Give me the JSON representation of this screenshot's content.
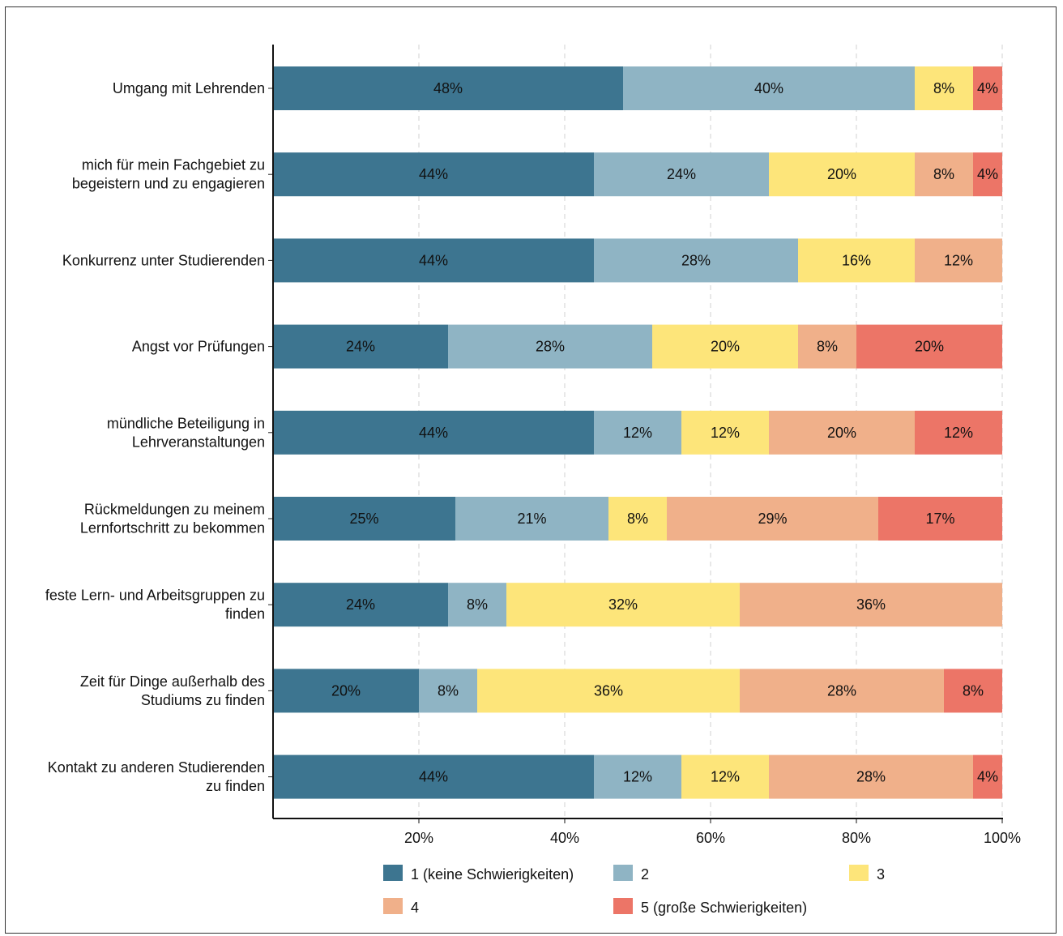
{
  "chart_data": {
    "type": "bar",
    "orientation": "horizontal",
    "stacked": true,
    "categories": [
      [
        "Umgang mit Lehrenden"
      ],
      [
        "mich für mein Fachgebiet zu",
        "begeistern und zu engagieren"
      ],
      [
        "Konkurrenz unter Studierenden"
      ],
      [
        "Angst vor Prüfungen"
      ],
      [
        "mündliche Beteiligung in",
        "Lehrveranstaltungen"
      ],
      [
        "Rückmeldungen zu meinem",
        "Lernfortschritt zu bekommen"
      ],
      [
        "feste Lern- und Arbeitsgruppen zu",
        "finden"
      ],
      [
        "Zeit für Dinge außerhalb des",
        "Studiums zu finden"
      ],
      [
        "Kontakt zu anderen Studierenden",
        "zu finden"
      ]
    ],
    "series": [
      {
        "name": "1 (keine Schwierigkeiten)",
        "color": "#3d7590",
        "values": [
          48,
          44,
          44,
          24,
          44,
          25,
          24,
          20,
          44
        ]
      },
      {
        "name": "2",
        "color": "#8fb4c4",
        "values": [
          40,
          24,
          28,
          28,
          12,
          21,
          8,
          8,
          12
        ]
      },
      {
        "name": "3",
        "color": "#fde57a",
        "values": [
          8,
          20,
          16,
          20,
          12,
          8,
          32,
          36,
          12
        ]
      },
      {
        "name": "4",
        "color": "#f0b08a",
        "values": [
          0,
          8,
          12,
          8,
          20,
          29,
          36,
          28,
          28
        ]
      },
      {
        "name": "5 (große Schwierigkeiten)",
        "color": "#ec7567",
        "values": [
          4,
          4,
          0,
          20,
          12,
          17,
          0,
          8,
          4
        ]
      }
    ],
    "data_labels": [
      [
        "48%",
        "40%",
        "8%",
        "",
        "4%"
      ],
      [
        "44%",
        "24%",
        "20%",
        "8%",
        "4%"
      ],
      [
        "44%",
        "28%",
        "16%",
        "12%",
        ""
      ],
      [
        "24%",
        "28%",
        "20%",
        "8%",
        "20%"
      ],
      [
        "44%",
        "12%",
        "12%",
        "20%",
        "12%"
      ],
      [
        "25%",
        "21%",
        "8%",
        "29%",
        "17%"
      ],
      [
        "24%",
        "8%",
        "32%",
        "36%",
        ""
      ],
      [
        "20%",
        "8%",
        "36%",
        "28%",
        "8%"
      ],
      [
        "44%",
        "12%",
        "12%",
        "28%",
        "4%"
      ]
    ],
    "xlim": [
      0,
      100
    ],
    "xticks": [
      20,
      40,
      60,
      80,
      100
    ],
    "xtick_labels": [
      "20%",
      "40%",
      "60%",
      "80%",
      "100%"
    ],
    "grid": "vertical dashed",
    "legend_position": "bottom",
    "title": "",
    "xlabel": "",
    "ylabel": ""
  }
}
